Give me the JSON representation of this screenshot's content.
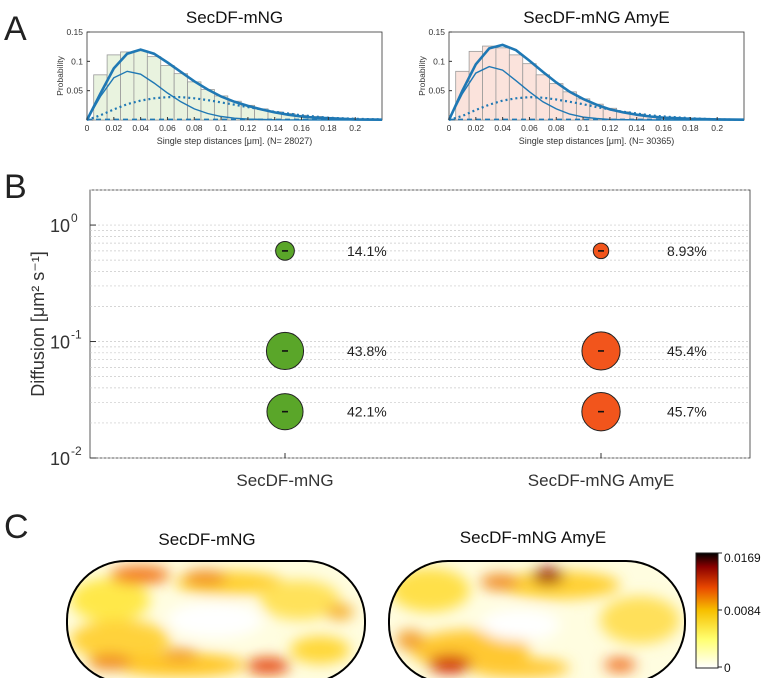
{
  "panels": {
    "a": "A",
    "b": "B",
    "c": "C"
  },
  "colors": {
    "fit_blue": "#1f78b4",
    "green_fill": "#e9f3df",
    "pink_fill": "#fbe3dc",
    "hist_edge": "#9a9a9a",
    "green_marker": "#5aa629",
    "orange_marker": "#f2551c",
    "grid": "#c8c8c8"
  },
  "chart_data": [
    {
      "type": "bar",
      "title": "SecDF-mNG",
      "xlabel": "Single step distances [μm]. (N= 28027)",
      "ylabel": "Probability",
      "xlim": [
        0,
        0.22
      ],
      "ylim": [
        0,
        0.15
      ],
      "xticks": [
        "0",
        "0.02",
        "0.04",
        "0.06",
        "0.08",
        "0.1",
        "0.12",
        "0.14",
        "0.16",
        "0.18",
        "0.2"
      ],
      "yticks": [
        "0.05",
        "0.1",
        "0.15"
      ],
      "fill": "green_fill",
      "bin_width": 0.01,
      "bins": [
        0.01,
        0.02,
        0.03,
        0.04,
        0.05,
        0.06,
        0.07,
        0.08,
        0.09,
        0.1,
        0.11,
        0.12,
        0.13,
        0.14,
        0.15,
        0.16,
        0.17,
        0.18,
        0.19,
        0.2,
        0.21
      ],
      "values": [
        0.077,
        0.111,
        0.116,
        0.118,
        0.108,
        0.093,
        0.079,
        0.065,
        0.052,
        0.041,
        0.032,
        0.025,
        0.019,
        0.014,
        0.011,
        0.008,
        0.006,
        0.004,
        0.003,
        0.002,
        0.002
      ],
      "fits": [
        {
          "kind": "total",
          "style": "solid-thick",
          "x": [
            0,
            0.01,
            0.02,
            0.03,
            0.04,
            0.05,
            0.06,
            0.07,
            0.08,
            0.09,
            0.1,
            0.11,
            0.12,
            0.13,
            0.14,
            0.15,
            0.16,
            0.17,
            0.18,
            0.19,
            0.2,
            0.22
          ],
          "y": [
            0,
            0.045,
            0.088,
            0.113,
            0.12,
            0.113,
            0.098,
            0.082,
            0.066,
            0.052,
            0.04,
            0.031,
            0.024,
            0.018,
            0.013,
            0.009,
            0.006,
            0.004,
            0.003,
            0.002,
            0.001,
            0.0005
          ]
        },
        {
          "kind": "component",
          "style": "solid",
          "x": [
            0,
            0.01,
            0.02,
            0.03,
            0.04,
            0.05,
            0.06,
            0.07,
            0.08,
            0.09,
            0.1,
            0.11,
            0.12,
            0.14,
            0.16,
            0.22
          ],
          "y": [
            0,
            0.04,
            0.072,
            0.083,
            0.078,
            0.063,
            0.046,
            0.031,
            0.019,
            0.011,
            0.006,
            0.003,
            0.0015,
            0.0004,
            0.0001,
            0
          ]
        },
        {
          "kind": "component",
          "style": "dotted",
          "x": [
            0,
            0.01,
            0.02,
            0.03,
            0.04,
            0.05,
            0.06,
            0.07,
            0.08,
            0.09,
            0.1,
            0.11,
            0.12,
            0.13,
            0.14,
            0.15,
            0.16,
            0.17,
            0.18,
            0.2,
            0.22
          ],
          "y": [
            0,
            0.008,
            0.018,
            0.027,
            0.033,
            0.037,
            0.039,
            0.039,
            0.037,
            0.034,
            0.03,
            0.026,
            0.022,
            0.018,
            0.014,
            0.011,
            0.008,
            0.006,
            0.004,
            0.002,
            0.001
          ]
        },
        {
          "kind": "component",
          "style": "dashed-flat",
          "x": [
            0,
            0.22
          ],
          "y": [
            0.001,
            0.001
          ]
        }
      ]
    },
    {
      "type": "bar",
      "title": "SecDF-mNG AmyE",
      "xlabel": "Single step distances [μm]. (N= 30365)",
      "ylabel": "Probability",
      "xlim": [
        0,
        0.22
      ],
      "ylim": [
        0,
        0.15
      ],
      "xticks": [
        "0",
        "0.02",
        "0.04",
        "0.06",
        "0.08",
        "0.1",
        "0.12",
        "0.14",
        "0.16",
        "0.18",
        "0.2"
      ],
      "yticks": [
        "0.05",
        "0.1",
        "0.15"
      ],
      "fill": "pink_fill",
      "bin_width": 0.01,
      "bins": [
        0.01,
        0.02,
        0.03,
        0.04,
        0.05,
        0.06,
        0.07,
        0.08,
        0.09,
        0.1,
        0.11,
        0.12,
        0.13,
        0.14,
        0.15,
        0.16,
        0.17,
        0.18,
        0.19,
        0.2,
        0.21
      ],
      "values": [
        0.083,
        0.117,
        0.126,
        0.123,
        0.111,
        0.096,
        0.077,
        0.062,
        0.048,
        0.036,
        0.027,
        0.02,
        0.014,
        0.01,
        0.007,
        0.005,
        0.003,
        0.002,
        0.002,
        0.001,
        0.001
      ],
      "fits": [
        {
          "kind": "total",
          "style": "solid-thick",
          "x": [
            0,
            0.01,
            0.02,
            0.03,
            0.04,
            0.05,
            0.06,
            0.07,
            0.08,
            0.09,
            0.1,
            0.11,
            0.12,
            0.13,
            0.14,
            0.15,
            0.16,
            0.17,
            0.18,
            0.2,
            0.22
          ],
          "y": [
            0,
            0.05,
            0.095,
            0.122,
            0.128,
            0.119,
            0.101,
            0.082,
            0.064,
            0.048,
            0.036,
            0.026,
            0.018,
            0.013,
            0.009,
            0.006,
            0.004,
            0.003,
            0.002,
            0.001,
            0.0005
          ]
        },
        {
          "kind": "component",
          "style": "solid",
          "x": [
            0,
            0.01,
            0.02,
            0.03,
            0.04,
            0.05,
            0.06,
            0.07,
            0.08,
            0.09,
            0.1,
            0.11,
            0.12,
            0.14,
            0.16,
            0.22
          ],
          "y": [
            0,
            0.045,
            0.08,
            0.091,
            0.085,
            0.067,
            0.048,
            0.031,
            0.019,
            0.01,
            0.005,
            0.0025,
            0.001,
            0.0002,
            0,
            0
          ]
        },
        {
          "kind": "component",
          "style": "dotted",
          "x": [
            0,
            0.01,
            0.02,
            0.03,
            0.04,
            0.05,
            0.06,
            0.07,
            0.08,
            0.09,
            0.1,
            0.11,
            0.12,
            0.13,
            0.14,
            0.15,
            0.16,
            0.18,
            0.2,
            0.22
          ],
          "y": [
            0,
            0.007,
            0.017,
            0.026,
            0.033,
            0.037,
            0.039,
            0.038,
            0.035,
            0.031,
            0.027,
            0.022,
            0.018,
            0.014,
            0.011,
            0.008,
            0.006,
            0.003,
            0.001,
            0.0005
          ]
        },
        {
          "kind": "component",
          "style": "dashed-flat",
          "x": [
            0,
            0.22
          ],
          "y": [
            0.001,
            0.001
          ]
        }
      ]
    },
    {
      "type": "scatter",
      "ylabel": "Diffusion [μm² s⁻¹]",
      "yscale": "log",
      "ylim": [
        0.01,
        2
      ],
      "yticks": [
        {
          "base": "10",
          "exp": "0",
          "value": 1
        },
        {
          "base": "10",
          "exp": "-1",
          "value": 0.1
        },
        {
          "base": "10",
          "exp": "-2",
          "value": 0.01
        }
      ],
      "grid": "minor dotted",
      "categories": [
        "SecDF-mNG",
        "SecDF-mNG AmyE"
      ],
      "series": [
        {
          "category": "SecDF-mNG",
          "color": "green_marker",
          "points": [
            {
              "D": 0.6,
              "fraction": 14.1,
              "label": "14.1%"
            },
            {
              "D": 0.083,
              "fraction": 43.8,
              "label": "43.8%"
            },
            {
              "D": 0.025,
              "fraction": 42.1,
              "label": "42.1%"
            }
          ]
        },
        {
          "category": "SecDF-mNG AmyE",
          "color": "orange_marker",
          "points": [
            {
              "D": 0.6,
              "fraction": 8.93,
              "label": "8.93%"
            },
            {
              "D": 0.083,
              "fraction": 45.4,
              "label": "45.4%"
            },
            {
              "D": 0.025,
              "fraction": 45.7,
              "label": "45.7%"
            }
          ]
        }
      ]
    },
    {
      "type": "heatmap",
      "titles": [
        "SecDF-mNG",
        "SecDF-mNG AmyE"
      ],
      "colorscale": [
        "#ffffff",
        "#ffff70",
        "#f2a000",
        "#e03000",
        "#7a0000",
        "#000000"
      ],
      "colorbar_ticks": [
        "0.0169",
        "0.0084",
        "0"
      ],
      "colorbar_range": [
        0,
        0.0169
      ]
    }
  ]
}
